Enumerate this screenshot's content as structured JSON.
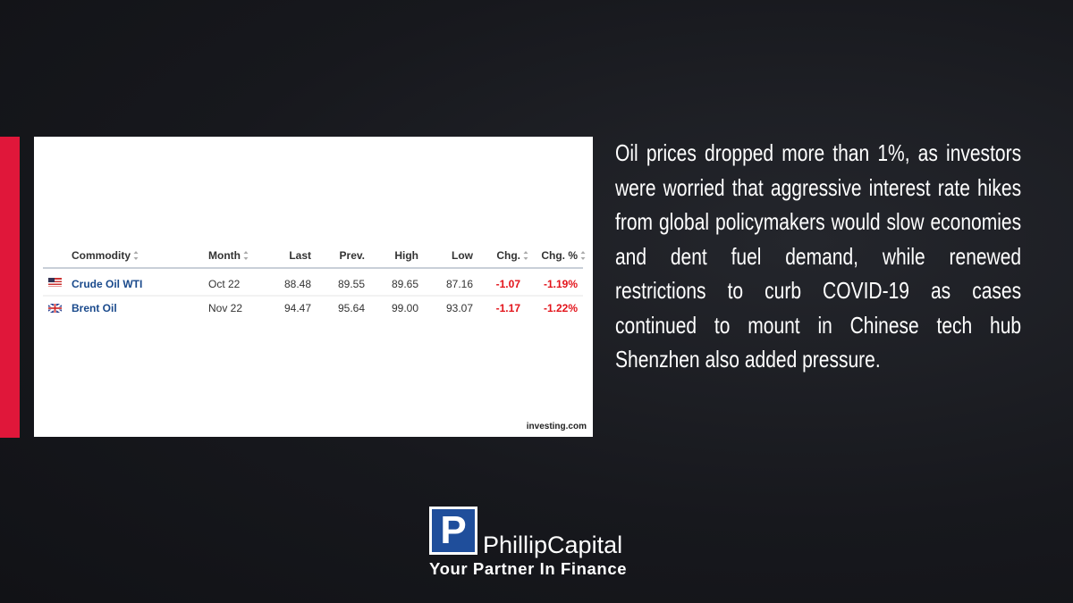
{
  "table": {
    "headers": [
      "Commodity",
      "Month",
      "Last",
      "Prev.",
      "High",
      "Low",
      "Chg.",
      "Chg. %"
    ],
    "rows": [
      [
        "Crude Oil WTI",
        "Oct 22",
        "88.48",
        "89.55",
        "89.65",
        "87.16",
        "-1.07",
        "-1.19%"
      ],
      [
        "Brent Oil",
        "Nov 22",
        "94.47",
        "95.64",
        "99.00",
        "93.07",
        "-1.17",
        "-1.22%"
      ]
    ],
    "source": "investing.com"
  },
  "article": {
    "text": "Oil prices dropped more than 1%, as investors were worried that aggressive interest rate hikes from global policymakers would slow economies and dent fuel demand, while renewed restrictions to curb COVID-19 as cases continued to mount in Chinese tech hub Shenzhen also added pressure."
  },
  "logo": {
    "mark": "P",
    "name": "PhillipCapital",
    "tagline": "Your Partner In Finance"
  }
}
